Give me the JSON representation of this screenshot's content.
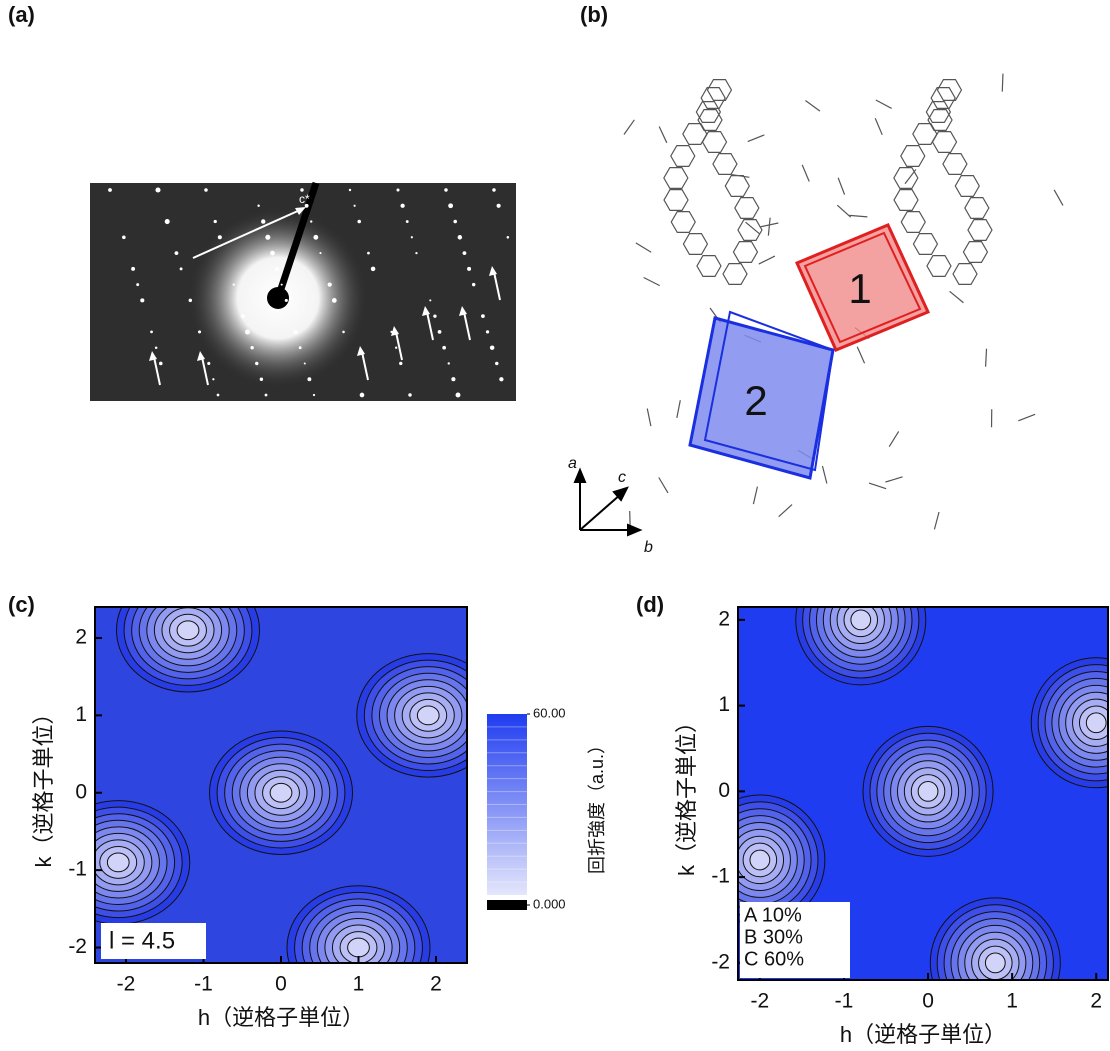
{
  "panel_labels": [
    "(a)",
    "(b)",
    "(c)",
    "(d)"
  ],
  "panel_a": {
    "arrow_label": "c*"
  },
  "panel_b": {
    "cells": [
      "1",
      "2"
    ],
    "axes": [
      "a",
      "b",
      "c"
    ]
  },
  "chart_data": [
    {
      "type": "contour",
      "x_label": "h（逆格子単位）",
      "y_label": "k（逆格子単位）",
      "xlim": [
        -2.4,
        2.4
      ],
      "ylim": [
        -2.2,
        2.4
      ],
      "xticks": [
        -2,
        -1,
        0,
        1,
        2
      ],
      "yticks": [
        -2,
        -1,
        0,
        1,
        2
      ],
      "color": "#2f45e0",
      "peaks": {
        "x": [
          0,
          -1.2,
          1.9,
          -2.1,
          1.0
        ],
        "y": [
          0,
          2.1,
          1.0,
          -0.9,
          -2.0
        ]
      },
      "annotation": "l = 4.5",
      "colorbar": {
        "label": "回折強度（a.u.）",
        "ticks": [
          {
            "value": 60,
            "label": "60.00"
          },
          {
            "value": 0,
            "label": "0.000"
          }
        ]
      }
    },
    {
      "type": "contour",
      "x_label": "h（逆格子単位）",
      "y_label": "k（逆格子単位）",
      "xlim": [
        -2.26,
        2.14
      ],
      "ylim": [
        -2.2,
        2.15
      ],
      "xticks": [
        -2,
        -1,
        0,
        1,
        2
      ],
      "yticks": [
        -2,
        -1,
        0,
        1,
        2
      ],
      "color": "#1f3cf0",
      "peaks": {
        "x": [
          -0.8,
          0,
          2,
          -2,
          0.8
        ],
        "y": [
          2,
          0,
          0.8,
          -0.8,
          -2
        ]
      },
      "legend": [
        "A 10%",
        "B 30%",
        "C 60%"
      ]
    }
  ]
}
